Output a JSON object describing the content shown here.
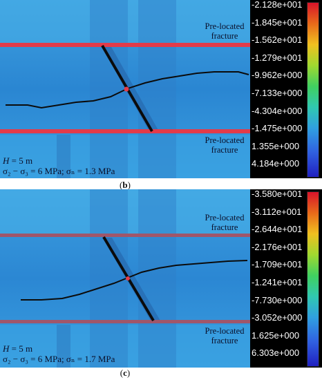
{
  "panels": [
    {
      "caption_letter": "b",
      "fracture_top": "Pre-located\nfracture",
      "fracture_bottom": "Pre-located\nfracture",
      "params_line1_var": "H",
      "params_line1_rest": " = 5 m",
      "params_line2": "σ₂ − σ₃ = 6 MPa; σₙ = 1.3 MPa",
      "colorbar_labels": [
        "-2.128e+001",
        "-1.845e+001",
        "-1.562e+001",
        "-1.279e+001",
        "-9.962e+000",
        "-7.133e+000",
        "-4.304e+000",
        "-1.475e+000",
        "1.355e+000",
        "4.184e+000"
      ]
    },
    {
      "caption_letter": "c",
      "fracture_top": "Pre-located\nfracture",
      "fracture_bottom": "Pre-located\nfracture",
      "params_line1_var": "H",
      "params_line1_rest": " = 5 m",
      "params_line2": "σ₂ − σ₃ = 6 MPa; σₙ = 1.7 MPa",
      "colorbar_labels": [
        "-3.580e+001",
        "-3.112e+001",
        "-2.644e+001",
        "-2.176e+001",
        "-1.709e+001",
        "-1.241e+001",
        "-7.730e+000",
        "-3.052e+000",
        "1.625e+000",
        "6.303e+000"
      ]
    }
  ],
  "colors": {
    "background_field": "#2f8fd6",
    "fracture_band": "#e23b4a",
    "crack": "#0b0b0b"
  }
}
